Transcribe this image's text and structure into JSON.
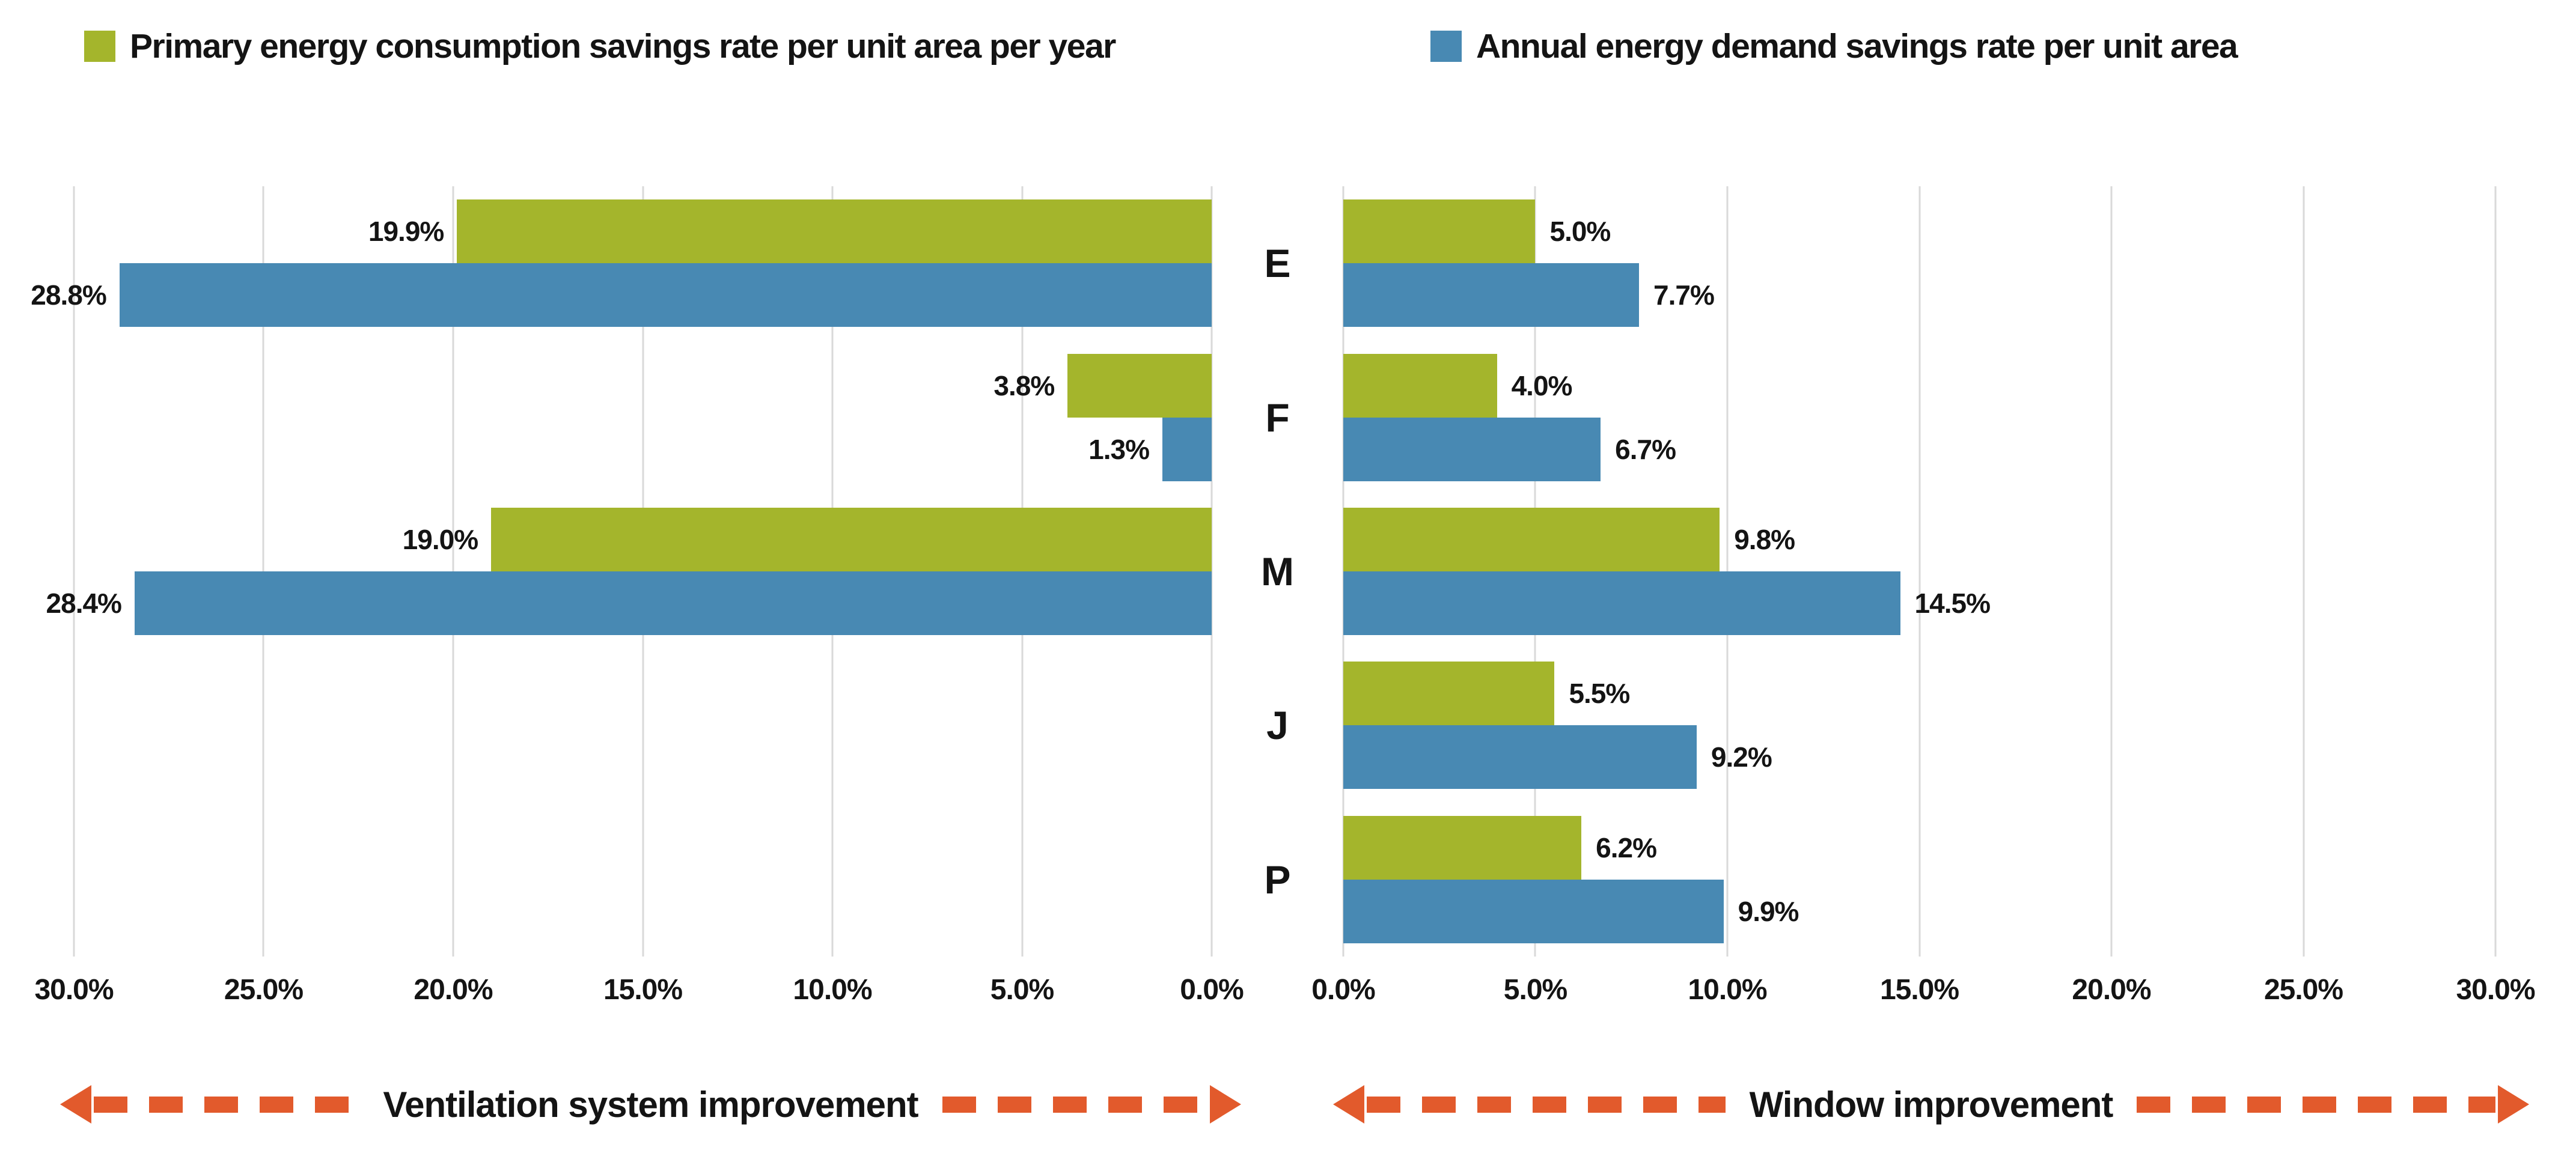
{
  "legend": [
    {
      "label": "Primary energy consumption savings rate per unit area per year",
      "color": "#A4B52C"
    },
    {
      "label": "Annual energy demand savings rate per unit area",
      "color": "#4889B3"
    }
  ],
  "chart_data": {
    "type": "bar",
    "variant": "butterfly",
    "orientation": "horizontal",
    "categories": [
      "E",
      "F",
      "M",
      "J",
      "P"
    ],
    "axis": {
      "min": 0,
      "max": 30,
      "tick_step": 5,
      "unit": "%",
      "grid": true,
      "gridline_color": "#D9D9D9",
      "left_tick_labels": [
        "30.0%",
        "25.0%",
        "20.0%",
        "15.0%",
        "10.0%",
        "5.0%",
        "0.0%"
      ],
      "right_tick_labels": [
        "0.0%",
        "5.0%",
        "10.0%",
        "15.0%",
        "20.0%",
        "25.0%",
        "30.0%"
      ]
    },
    "panels": [
      {
        "side": "left",
        "label": "Ventilation system improvement",
        "series": [
          {
            "name": "Primary energy consumption savings rate per unit area per year",
            "color": "#A4B52C",
            "values": [
              19.9,
              3.8,
              19.0,
              null,
              null
            ],
            "labels": [
              "19.9%",
              "3.8%",
              "19.0%",
              null,
              null
            ]
          },
          {
            "name": "Annual energy demand savings rate per unit area",
            "color": "#4889B3",
            "values": [
              28.8,
              1.3,
              28.4,
              null,
              null
            ],
            "labels": [
              "28.8%",
              "1.3%",
              "28.4%",
              null,
              null
            ]
          }
        ]
      },
      {
        "side": "right",
        "label": "Window improvement",
        "series": [
          {
            "name": "Primary energy consumption savings rate per unit area per year",
            "color": "#A4B52C",
            "values": [
              5.0,
              4.0,
              9.8,
              5.5,
              6.2
            ],
            "labels": [
              "5.0%",
              "4.0%",
              "9.8%",
              "5.5%",
              "6.2%"
            ]
          },
          {
            "name": "Annual energy demand savings rate per unit area",
            "color": "#4889B3",
            "values": [
              7.7,
              6.7,
              14.5,
              9.2,
              9.9
            ],
            "labels": [
              "7.7%",
              "6.7%",
              "14.5%",
              "9.2%",
              "9.9%"
            ]
          }
        ]
      }
    ],
    "arrow_color": "#E25A2C"
  }
}
